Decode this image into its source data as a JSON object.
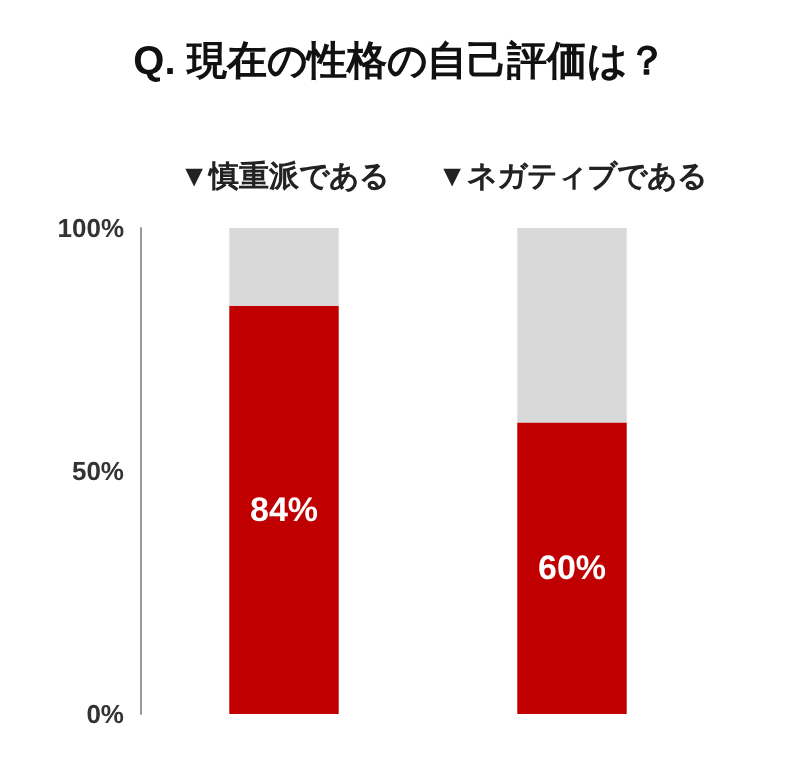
{
  "chart_data": {
    "type": "bar",
    "title": "Q. 現在の性格の自己評価は？",
    "stacked": true,
    "categories": [
      "▼慎重派である",
      "▼ネガティブである"
    ],
    "series": [
      {
        "color": "#c00000",
        "values": [
          84,
          60
        ],
        "value_labels": [
          "84%",
          "60%"
        ]
      },
      {
        "color": "#d9d9d9",
        "values": [
          16,
          40
        ]
      }
    ],
    "ylim": [
      0,
      100
    ],
    "yticks": [
      {
        "value": 0,
        "label": "0%"
      },
      {
        "value": 50,
        "label": "50%"
      },
      {
        "value": 100,
        "label": "100%"
      }
    ],
    "grid": false
  }
}
